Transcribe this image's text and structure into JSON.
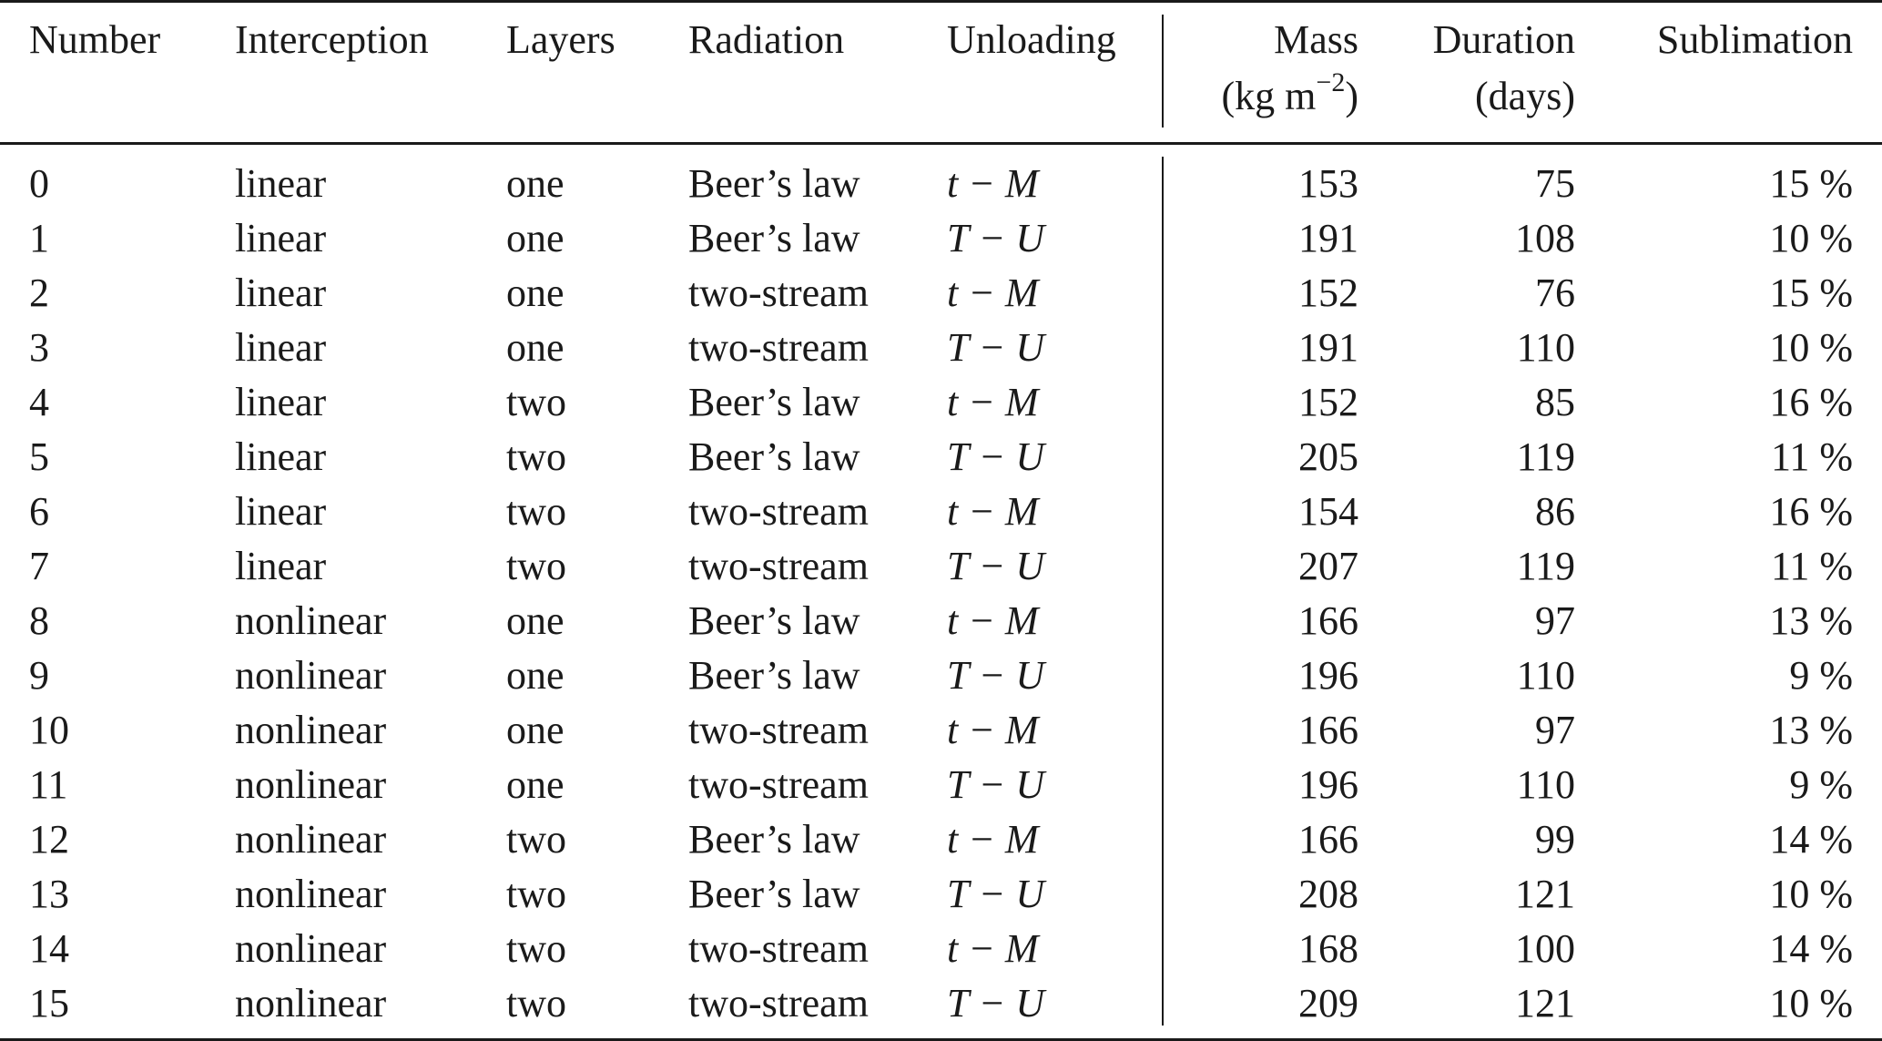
{
  "table": {
    "headers": {
      "number": "Number",
      "interception": "Interception",
      "layers": "Layers",
      "radiation": "Radiation",
      "unloading": "Unloading",
      "mass": "Mass",
      "mass_unit_base": "(kg m",
      "mass_unit_exp": "−2",
      "mass_unit_close": ")",
      "duration": "Duration",
      "duration_unit": "(days)",
      "sublimation": "Sublimation"
    },
    "rows": [
      {
        "number": "0",
        "interception": "linear",
        "layers": "one",
        "radiation": "Beer’s law",
        "unloading": "t − M",
        "mass": "153",
        "duration": "75",
        "sublimation": "15 %"
      },
      {
        "number": "1",
        "interception": "linear",
        "layers": "one",
        "radiation": "Beer’s law",
        "unloading": "T − U",
        "mass": "191",
        "duration": "108",
        "sublimation": "10 %"
      },
      {
        "number": "2",
        "interception": "linear",
        "layers": "one",
        "radiation": "two-stream",
        "unloading": "t − M",
        "mass": "152",
        "duration": "76",
        "sublimation": "15 %"
      },
      {
        "number": "3",
        "interception": "linear",
        "layers": "one",
        "radiation": "two-stream",
        "unloading": "T − U",
        "mass": "191",
        "duration": "110",
        "sublimation": "10 %"
      },
      {
        "number": "4",
        "interception": "linear",
        "layers": "two",
        "radiation": "Beer’s law",
        "unloading": "t − M",
        "mass": "152",
        "duration": "85",
        "sublimation": "16 %"
      },
      {
        "number": "5",
        "interception": "linear",
        "layers": "two",
        "radiation": "Beer’s law",
        "unloading": "T − U",
        "mass": "205",
        "duration": "119",
        "sublimation": "11 %"
      },
      {
        "number": "6",
        "interception": "linear",
        "layers": "two",
        "radiation": "two-stream",
        "unloading": "t − M",
        "mass": "154",
        "duration": "86",
        "sublimation": "16 %"
      },
      {
        "number": "7",
        "interception": "linear",
        "layers": "two",
        "radiation": "two-stream",
        "unloading": "T − U",
        "mass": "207",
        "duration": "119",
        "sublimation": "11 %"
      },
      {
        "number": "8",
        "interception": "nonlinear",
        "layers": "one",
        "radiation": "Beer’s law",
        "unloading": "t − M",
        "mass": "166",
        "duration": "97",
        "sublimation": "13 %"
      },
      {
        "number": "9",
        "interception": "nonlinear",
        "layers": "one",
        "radiation": "Beer’s law",
        "unloading": "T − U",
        "mass": "196",
        "duration": "110",
        "sublimation": "9 %"
      },
      {
        "number": "10",
        "interception": "nonlinear",
        "layers": "one",
        "radiation": "two-stream",
        "unloading": "t − M",
        "mass": "166",
        "duration": "97",
        "sublimation": "13 %"
      },
      {
        "number": "11",
        "interception": "nonlinear",
        "layers": "one",
        "radiation": "two-stream",
        "unloading": "T − U",
        "mass": "196",
        "duration": "110",
        "sublimation": "9 %"
      },
      {
        "number": "12",
        "interception": "nonlinear",
        "layers": "two",
        "radiation": "Beer’s law",
        "unloading": "t − M",
        "mass": "166",
        "duration": "99",
        "sublimation": "14 %"
      },
      {
        "number": "13",
        "interception": "nonlinear",
        "layers": "two",
        "radiation": "Beer’s law",
        "unloading": "T − U",
        "mass": "208",
        "duration": "121",
        "sublimation": "10 %"
      },
      {
        "number": "14",
        "interception": "nonlinear",
        "layers": "two",
        "radiation": "two-stream",
        "unloading": "t − M",
        "mass": "168",
        "duration": "100",
        "sublimation": "14 %"
      },
      {
        "number": "15",
        "interception": "nonlinear",
        "layers": "two",
        "radiation": "two-stream",
        "unloading": "T − U",
        "mass": "209",
        "duration": "121",
        "sublimation": "10 %"
      }
    ]
  }
}
